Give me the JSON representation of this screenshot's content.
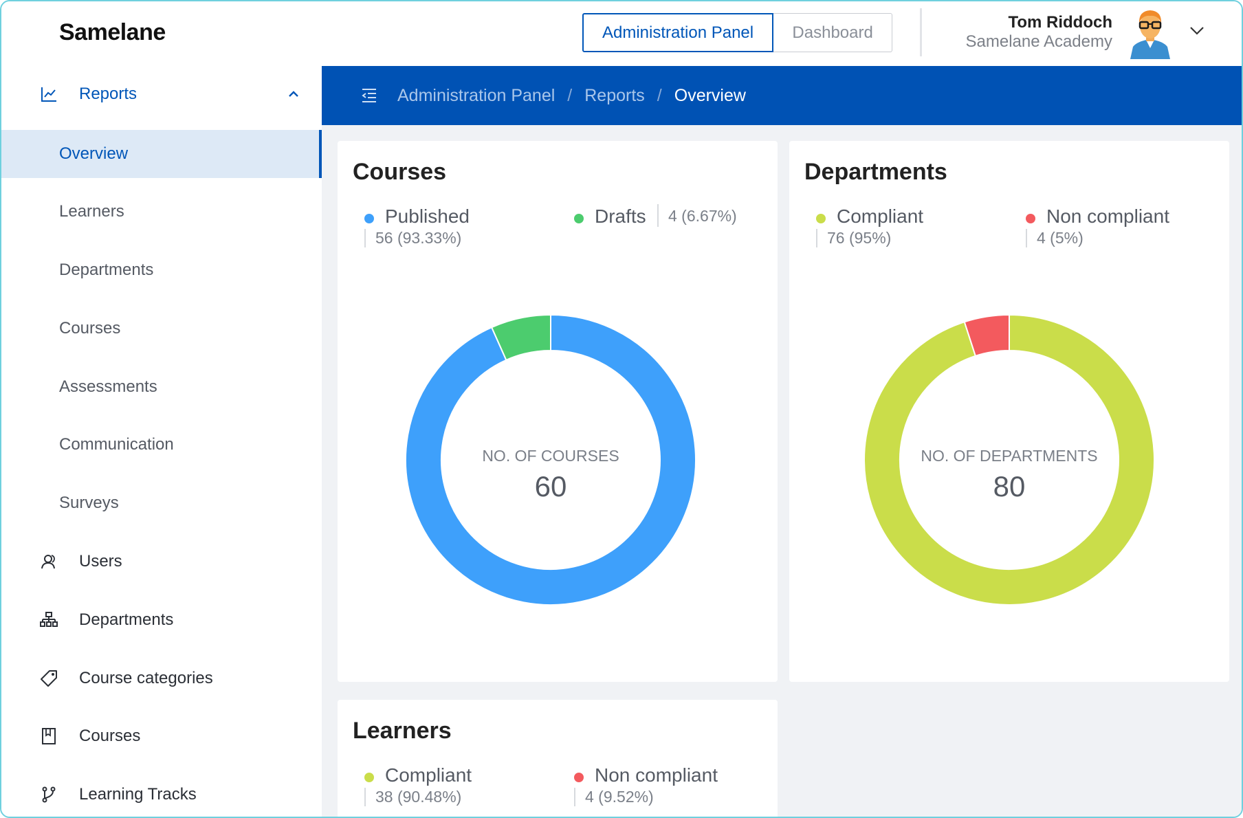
{
  "header": {
    "logo": "Samelane",
    "switch": {
      "admin_label": "Administration Panel",
      "dashboard_label": "Dashboard"
    },
    "user": {
      "name": "Tom Riddoch",
      "org": "Samelane Academy"
    }
  },
  "sidebar": {
    "reports": "Reports",
    "reports_sub": [
      "Overview",
      "Learners",
      "Departments",
      "Courses",
      "Assessments",
      "Communication",
      "Surveys"
    ],
    "items": [
      {
        "label": "Users",
        "icon": "users-icon"
      },
      {
        "label": "Departments",
        "icon": "org-chart-icon"
      },
      {
        "label": "Course categories",
        "icon": "tag-icon"
      },
      {
        "label": "Courses",
        "icon": "book-icon"
      },
      {
        "label": "Learning Tracks",
        "icon": "branch-icon"
      }
    ]
  },
  "breadcrumb": [
    "Administration Panel",
    "Reports",
    "Overview"
  ],
  "colors": {
    "brand": "#0052b4",
    "published": "#3ea0fb",
    "drafts": "#4ccc6e",
    "compliant": "#cadd4a",
    "non_compliant": "#f35a5e"
  },
  "cards": {
    "courses": {
      "title": "Courses",
      "legend": [
        {
          "name": "Published",
          "value": "56 (93.33%)"
        },
        {
          "name": "Drafts",
          "value": "4 (6.67%)"
        }
      ],
      "center_label": "NO. OF COURSES",
      "center_value": "60"
    },
    "departments": {
      "title": "Departments",
      "legend": [
        {
          "name": "Compliant",
          "value": "76 (95%)"
        },
        {
          "name": "Non compliant",
          "value": "4 (5%)"
        }
      ],
      "center_label": "NO. OF DEPARTMENTS",
      "center_value": "80"
    },
    "learners": {
      "title": "Learners",
      "legend": [
        {
          "name": "Compliant",
          "value": "38 (90.48%)"
        },
        {
          "name": "Non compliant",
          "value": "4 (9.52%)"
        }
      ]
    }
  },
  "chart_data": [
    {
      "type": "pie",
      "title": "Courses",
      "categories": [
        "Published",
        "Drafts"
      ],
      "values": [
        56,
        4
      ],
      "colors": [
        "#3ea0fb",
        "#4ccc6e"
      ],
      "hole": true
    },
    {
      "type": "pie",
      "title": "Departments",
      "categories": [
        "Compliant",
        "Non compliant"
      ],
      "values": [
        76,
        4
      ],
      "colors": [
        "#cadd4a",
        "#f35a5e"
      ],
      "hole": true
    }
  ]
}
